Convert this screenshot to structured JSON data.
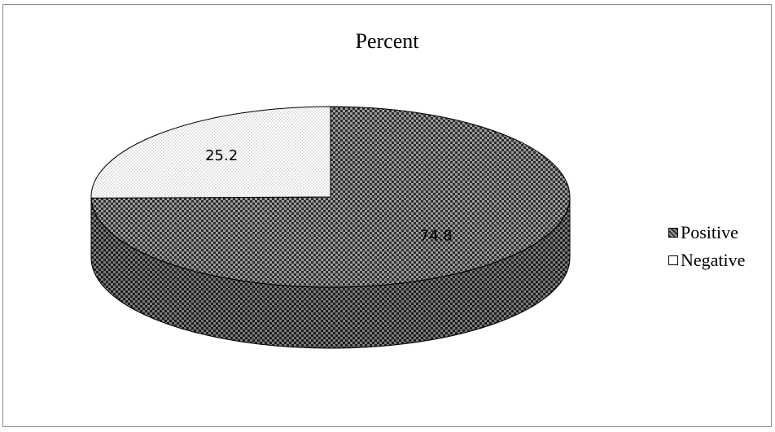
{
  "chart_data": {
    "type": "pie",
    "title": "Percent",
    "style": "3d",
    "categories": [
      "Positive",
      "Negative"
    ],
    "values": [
      74.8,
      25.2
    ],
    "data_labels": [
      "74.8",
      "25.2"
    ],
    "legend_position": "right",
    "colors": {
      "positive_pattern_dark": "#2e2e2e",
      "positive_pattern_light": "#9a9a9a",
      "negative_pattern_dots": "#b5b5b5",
      "negative_pattern_bg": "#ffffff",
      "outline": "#000000",
      "frame_border": "#8c8c8c"
    }
  }
}
